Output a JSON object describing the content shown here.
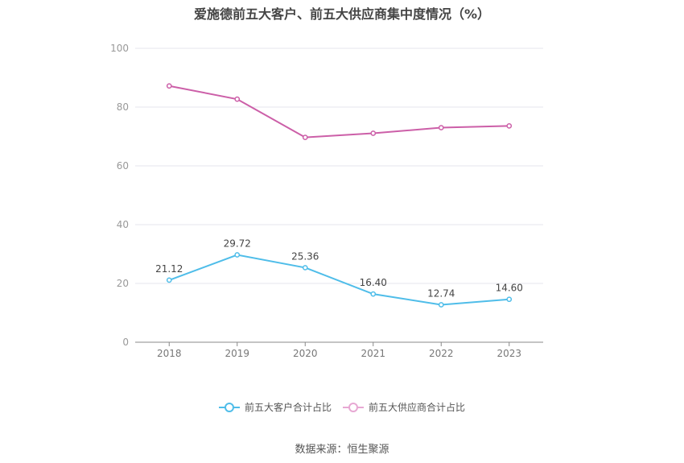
{
  "chart_data": {
    "type": "line",
    "title": "爱施德前五大客户、前五大供应商集中度情况（%）",
    "categories": [
      "2018",
      "2019",
      "2020",
      "2021",
      "2022",
      "2023"
    ],
    "series": [
      {
        "name": "前五大客户合计占比",
        "values": [
          21.12,
          29.72,
          25.36,
          16.4,
          12.74,
          14.6
        ],
        "labels": [
          "21.12",
          "29.72",
          "25.36",
          "16.40",
          "12.74",
          "14.60"
        ],
        "color": "#4fbde9",
        "show_labels": true
      },
      {
        "name": "前五大供应商合计占比",
        "values": [
          87.2,
          82.7,
          69.7,
          71.1,
          73.0,
          73.6
        ],
        "color": "#cc5fa8",
        "show_labels": false
      }
    ],
    "ylim": [
      0,
      100
    ],
    "yticks": [
      0,
      20,
      40,
      60,
      80,
      100
    ],
    "grid": true,
    "legend": "bottom"
  },
  "source": "数据来源：恒生聚源"
}
